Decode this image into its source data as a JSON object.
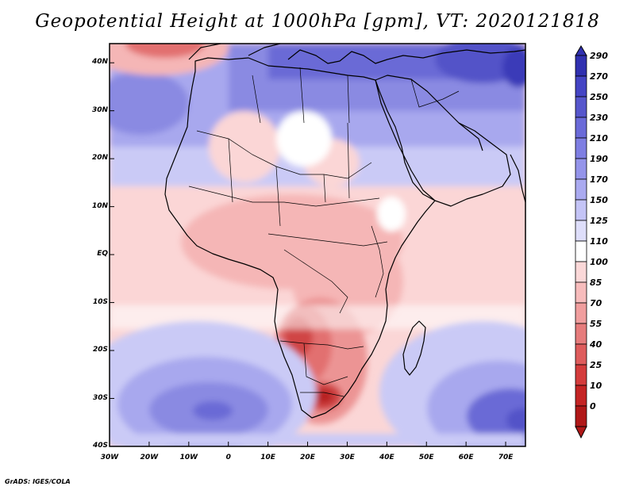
{
  "title": "Geopotential Height at 1000hPa [gpm], VT: 2020121818",
  "credit": "GrADS: IGES/COLA",
  "axes": {
    "lon_labels": [
      "30W",
      "20W",
      "10W",
      "0",
      "10E",
      "20E",
      "30E",
      "40E",
      "50E",
      "60E",
      "70E"
    ],
    "lat_labels": [
      "40N",
      "30N",
      "20N",
      "10N",
      "EQ",
      "10S",
      "20S",
      "30S",
      "40S"
    ],
    "lon_range": [
      -30,
      75
    ],
    "lat_range": [
      -40,
      44
    ]
  },
  "colorbar": {
    "levels": [
      "290",
      "270",
      "250",
      "230",
      "210",
      "190",
      "170",
      "150",
      "125",
      "110",
      "100",
      "85",
      "70",
      "55",
      "40",
      "25",
      "10",
      "0"
    ],
    "colors": [
      "#3030b0",
      "#4444c4",
      "#5656cc",
      "#6a6ad8",
      "#7e7ee2",
      "#9494ea",
      "#aaaaf0",
      "#c4c4f6",
      "#dedefa",
      "#ffffff",
      "#fbd8d8",
      "#f7bcbc",
      "#f09e9e",
      "#e67c7c",
      "#de5c5c",
      "#d43c3c",
      "#c42424",
      "#b01818"
    ]
  },
  "field": {
    "palette": {
      "d6": "#3b3bb8",
      "d5": "#5252c8",
      "d4": "#6b6bd6",
      "d3": "#8a8ae2",
      "d2": "#a8a8ee",
      "d1": "#cacaf6",
      "n0": "#ffffff",
      "r1": "#fbd6d6",
      "r2": "#f5b6b6",
      "r3": "#ec9494",
      "r4": "#e27070",
      "r5": "#d04444",
      "r6": "#b82020"
    }
  }
}
